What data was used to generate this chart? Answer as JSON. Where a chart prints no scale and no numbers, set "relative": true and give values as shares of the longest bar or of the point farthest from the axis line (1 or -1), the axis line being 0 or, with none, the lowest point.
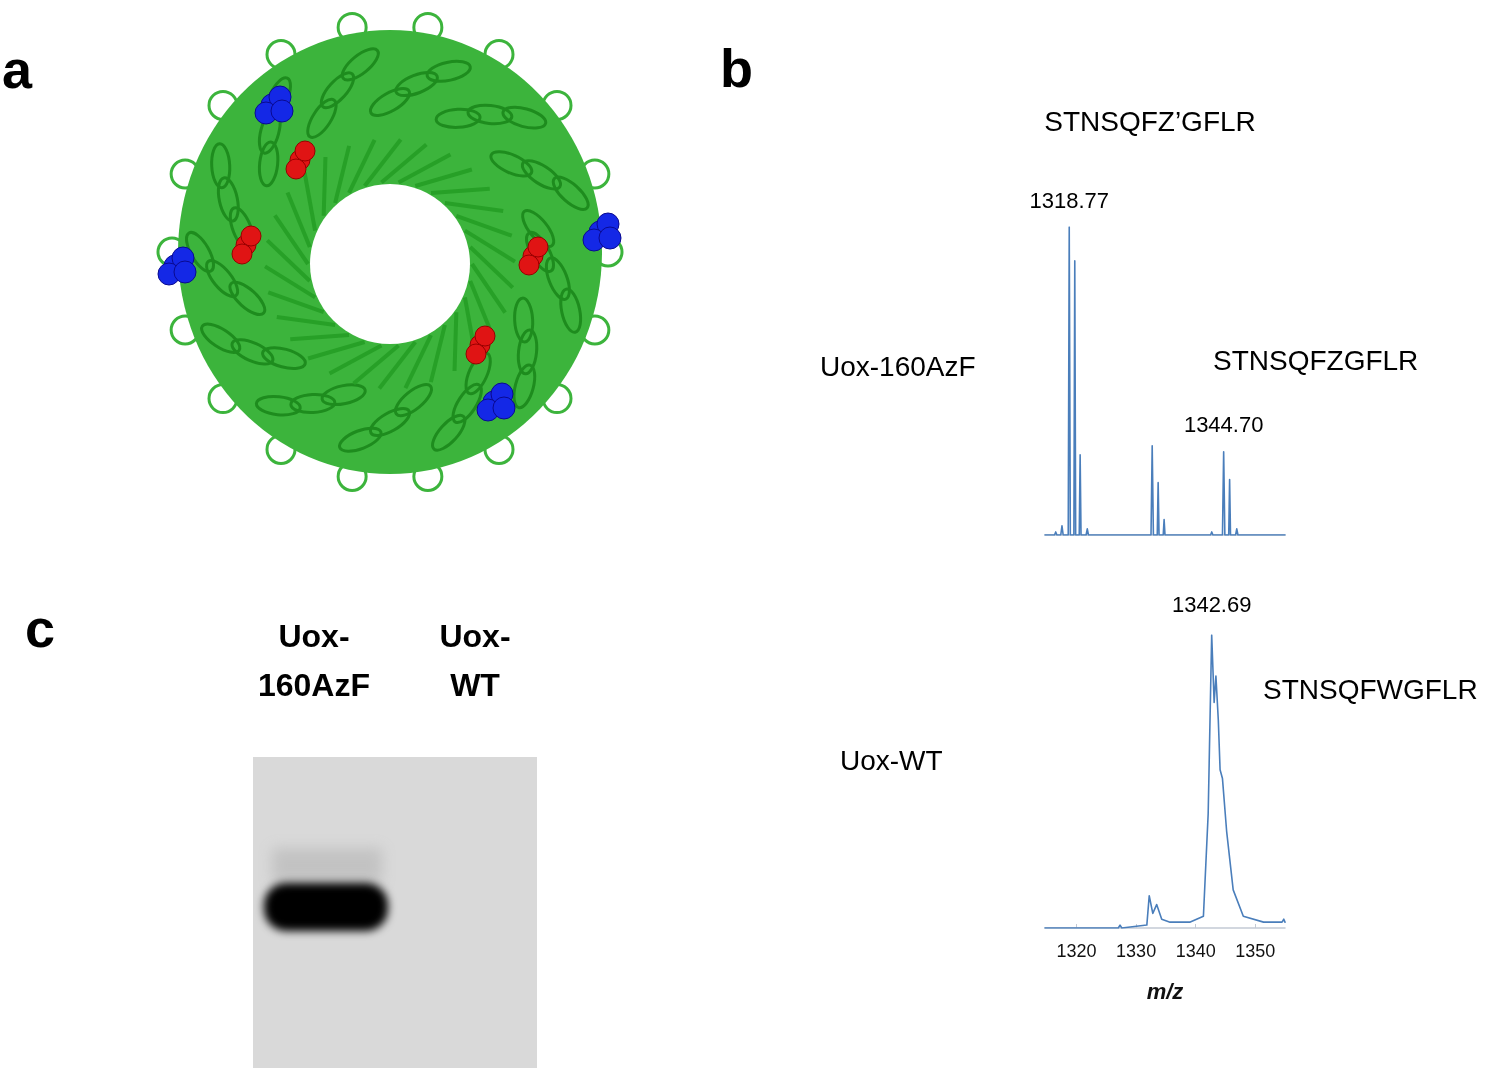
{
  "chart_data": [
    {
      "type": "other",
      "title": "a"
    },
    {
      "type": "line",
      "title": "b",
      "ylabel": "Uox-160AzF",
      "relative": true,
      "xlim": [
        1314.7,
        1355.0
      ],
      "tick_labels": false,
      "series": [
        {
          "color": "#4a7ebb",
          "x": [
            1314.7,
            1316.3,
            1316.5,
            1316.7,
            1317.35,
            1317.55,
            1317.75,
            1318.6,
            1318.77,
            1318.95,
            1319.55,
            1319.7,
            1319.85,
            1320.45,
            1320.6,
            1320.75,
            1321.6,
            1321.8,
            1322.0,
            1332.5,
            1332.7,
            1332.9,
            1333.55,
            1333.7,
            1333.85,
            1334.55,
            1334.7,
            1334.85,
            1342.5,
            1342.7,
            1342.9,
            1344.5,
            1344.7,
            1344.9,
            1345.55,
            1345.7,
            1345.85,
            1346.7,
            1346.9,
            1347.1,
            1355.0
          ],
          "values": [
            0,
            0,
            0.01,
            0,
            0,
            0.03,
            0,
            0,
            1,
            0,
            0,
            0.89,
            0,
            0,
            0.26,
            0,
            0,
            0.02,
            0,
            0,
            0.29,
            0,
            0,
            0.17,
            0,
            0,
            0.05,
            0,
            0,
            0.01,
            0,
            0,
            0.27,
            0,
            0,
            0.18,
            0,
            0,
            0.02,
            0,
            0
          ]
        }
      ],
      "annotations": [
        "STNSQFZ’GFLR",
        {
          "text": "1318.77",
          "x": 1318.77,
          "y": 1
        },
        "STNSQFZGFLR",
        {
          "text": "1344.70",
          "x": 1344.7,
          "y": 0.27
        }
      ]
    },
    {
      "type": "line",
      "ylabel": "Uox-WT",
      "xlabel": "m/z",
      "relative": true,
      "xlim": [
        1314.7,
        1355.0
      ],
      "xticks": [
        1320,
        1330,
        1340,
        1350
      ],
      "tick_labels": "x",
      "series": [
        {
          "color": "#4a7ebb",
          "x": [
            1314.7,
            1327.0,
            1327.3,
            1327.6,
            1331.8,
            1332.2,
            1332.8,
            1333.45,
            1334.3,
            1335.7,
            1339.0,
            1341.3,
            1342.1,
            1342.69,
            1343.1,
            1343.4,
            1343.8,
            1344.1,
            1344.5,
            1345.2,
            1346.3,
            1348.0,
            1351.4,
            1354.5,
            1354.8,
            1355.0
          ],
          "values": [
            0,
            0,
            0.01,
            0,
            0.01,
            0.11,
            0.05,
            0.08,
            0.03,
            0.02,
            0.02,
            0.04,
            0.39,
            1,
            0.77,
            0.86,
            0.71,
            0.54,
            0.51,
            0.33,
            0.13,
            0.04,
            0.02,
            0.02,
            0.03,
            0.02
          ]
        }
      ],
      "annotations": [
        {
          "text": "1342.69",
          "x": 1342.69,
          "y": 1
        },
        "STNSQFWGFLR"
      ]
    },
    {
      "type": "other",
      "title": "c",
      "annotations": [
        "Uox-160AzF",
        "Uox-WT"
      ]
    }
  ]
}
